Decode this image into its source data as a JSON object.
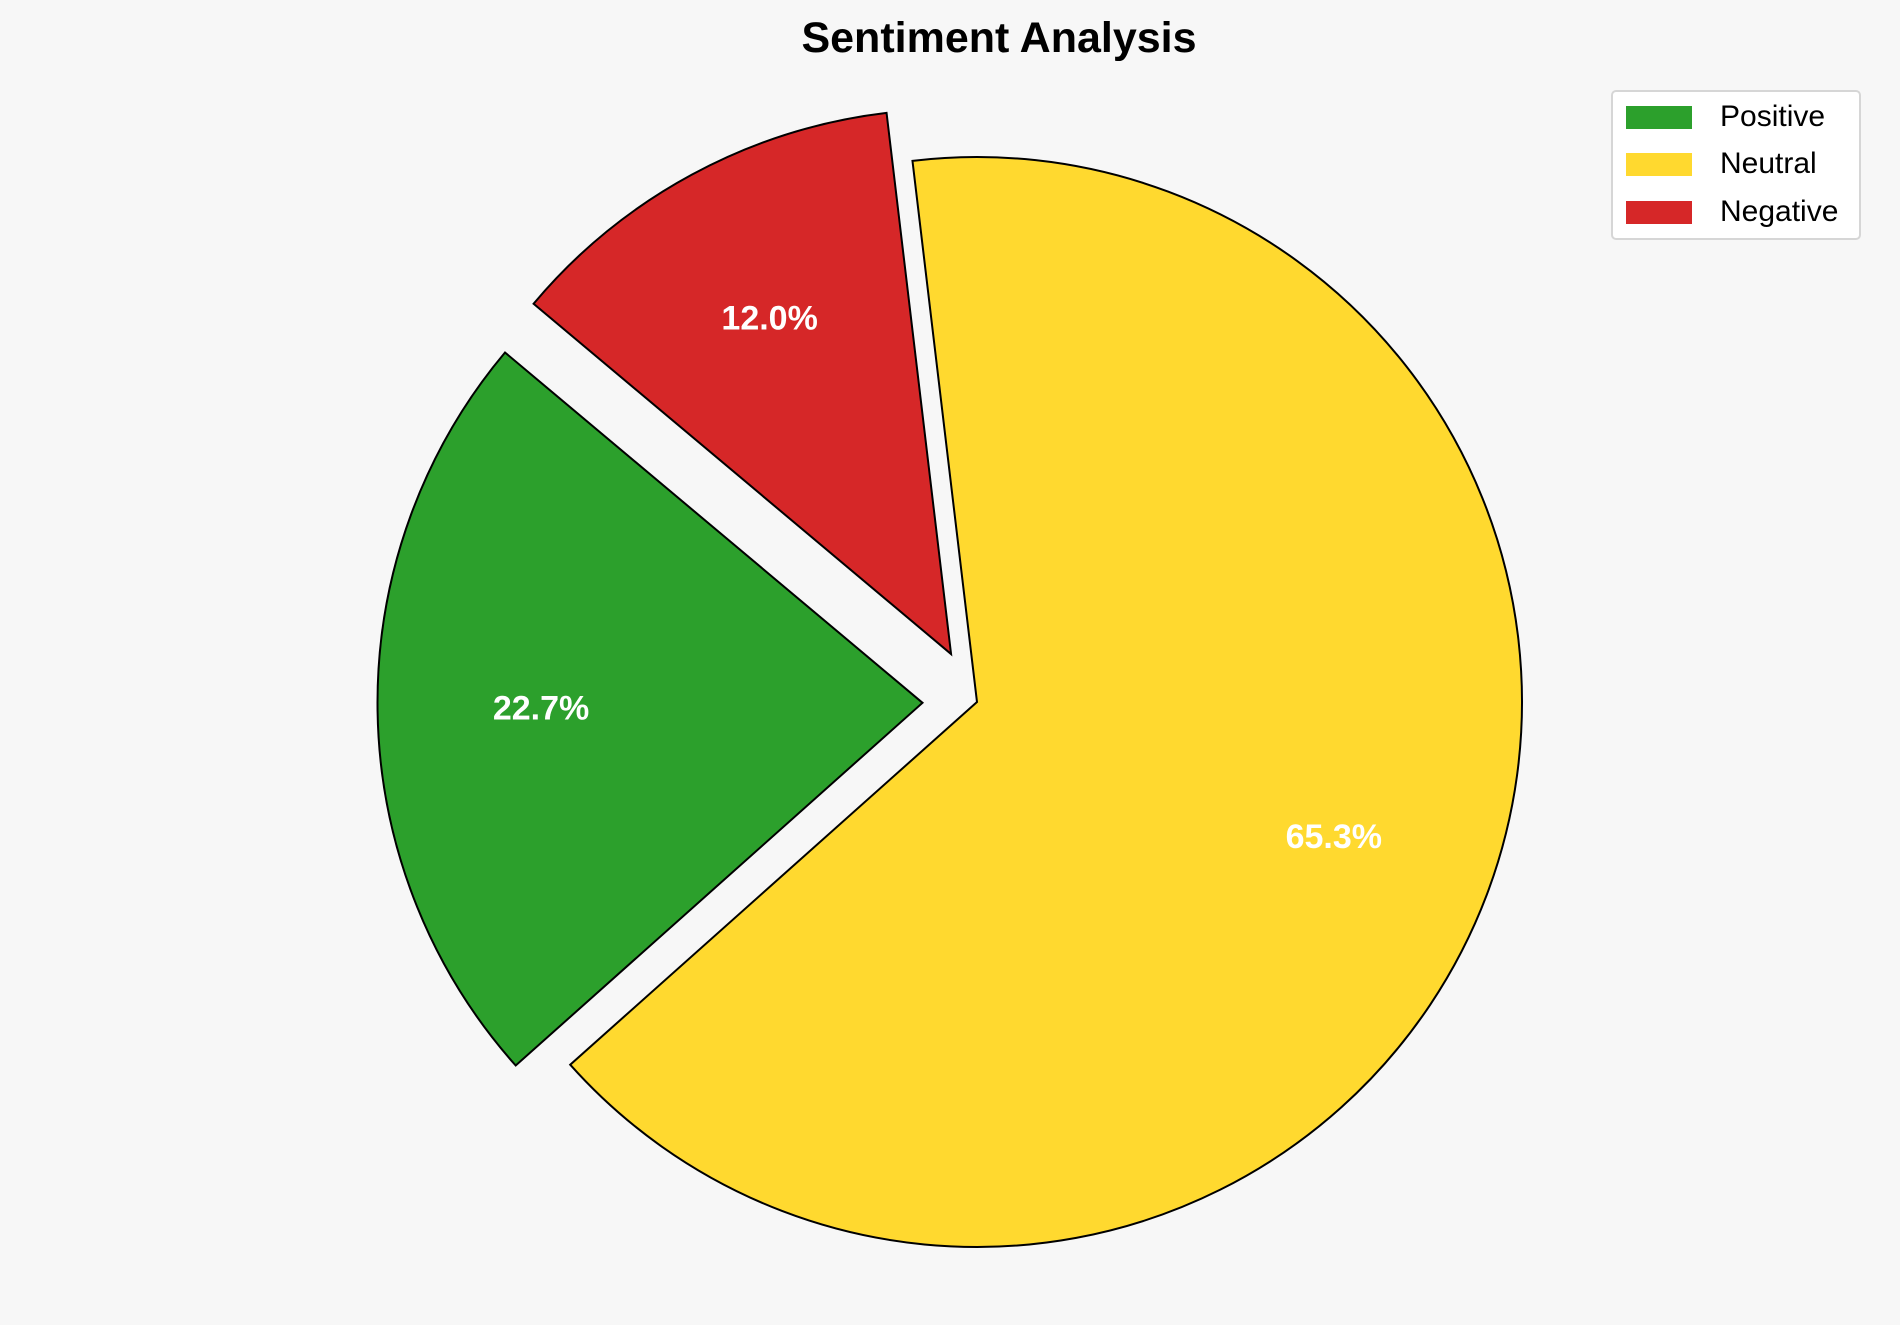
{
  "chart_data": {
    "type": "pie",
    "title": "Sentiment Analysis",
    "labels": [
      "Positive",
      "Neutral",
      "Negative"
    ],
    "values": [
      22.7,
      65.3,
      12.0
    ],
    "value_labels": [
      "22.7%",
      "65.3%",
      "12.0%"
    ],
    "colors": [
      "#2ca02c",
      "#ffd92f",
      "#d62728"
    ],
    "explode": [
      0.1,
      0,
      0.1
    ],
    "start_angle": 140,
    "edge_color": "#000000",
    "legend_position": "top-right"
  }
}
